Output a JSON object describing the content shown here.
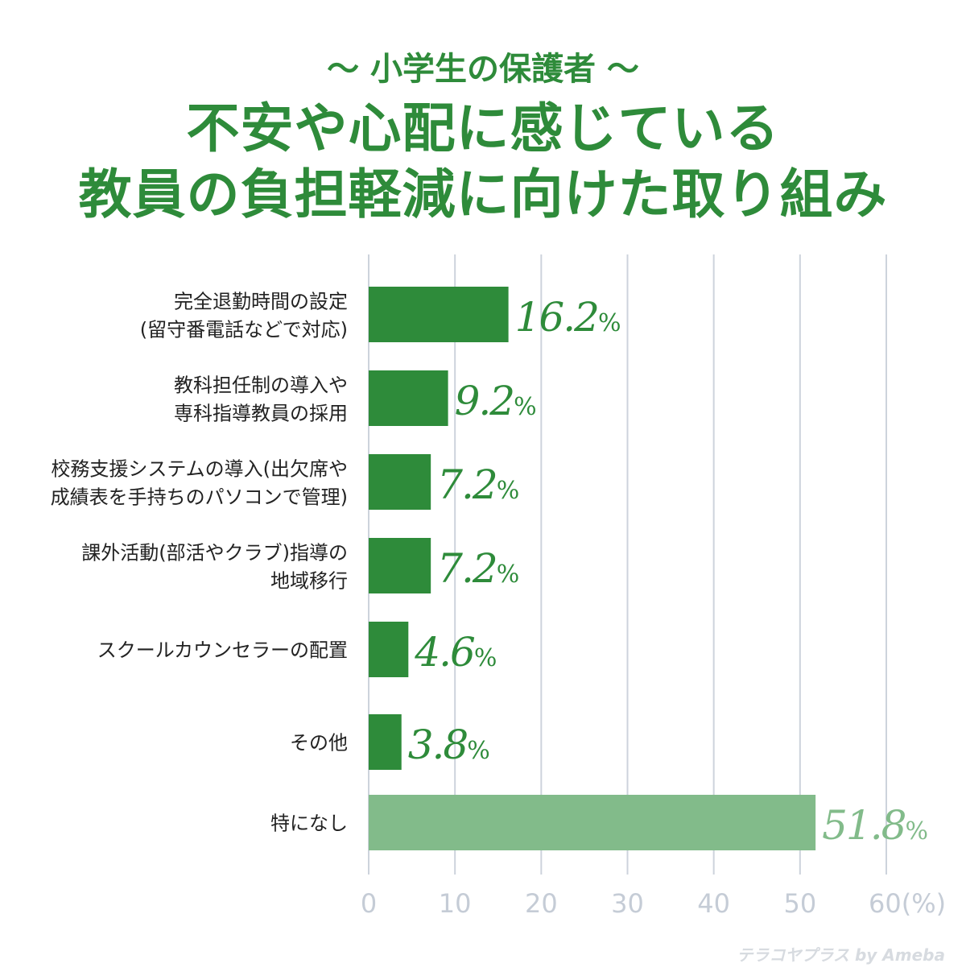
{
  "title": {
    "subtitle": "〜 小学生の保護者 〜",
    "line1": "不安や心配に感じている",
    "line2": "教員の負担軽減に向けた取り組み"
  },
  "colors": {
    "title": "#2e8b3a",
    "bar": "#2e8b3a",
    "bar_highlight": "#82bb8a",
    "grid": "#cdd3dc",
    "tick": "#c5ccd6"
  },
  "chart_data": {
    "type": "bar",
    "orientation": "horizontal",
    "categories": [
      [
        "完全退勤時間の設定",
        "(留守番電話などで対応)"
      ],
      [
        "教科担任制の導入や",
        "専科指導教員の採用"
      ],
      [
        "校務支援システムの導入(出欠席や",
        "成績表を手持ちのパソコンで管理)"
      ],
      [
        "課外活動(部活やクラブ)指導の",
        "地域移行"
      ],
      [
        "スクールカウンセラーの配置"
      ],
      [
        "その他"
      ],
      [
        "特になし"
      ]
    ],
    "values": [
      16.2,
      9.2,
      7.2,
      7.2,
      4.6,
      3.8,
      51.8
    ],
    "value_labels": [
      "16.2",
      "9.2",
      "7.2",
      "7.2",
      "4.6",
      "3.8",
      "51.8"
    ],
    "value_suffix": "%",
    "xlim": [
      0,
      60
    ],
    "xticks": [
      "0",
      "10",
      "20",
      "30",
      "40",
      "50",
      "60(%)"
    ],
    "grid": true,
    "highlight_index": 6
  },
  "watermark": "テラコヤプラス by Ameba"
}
